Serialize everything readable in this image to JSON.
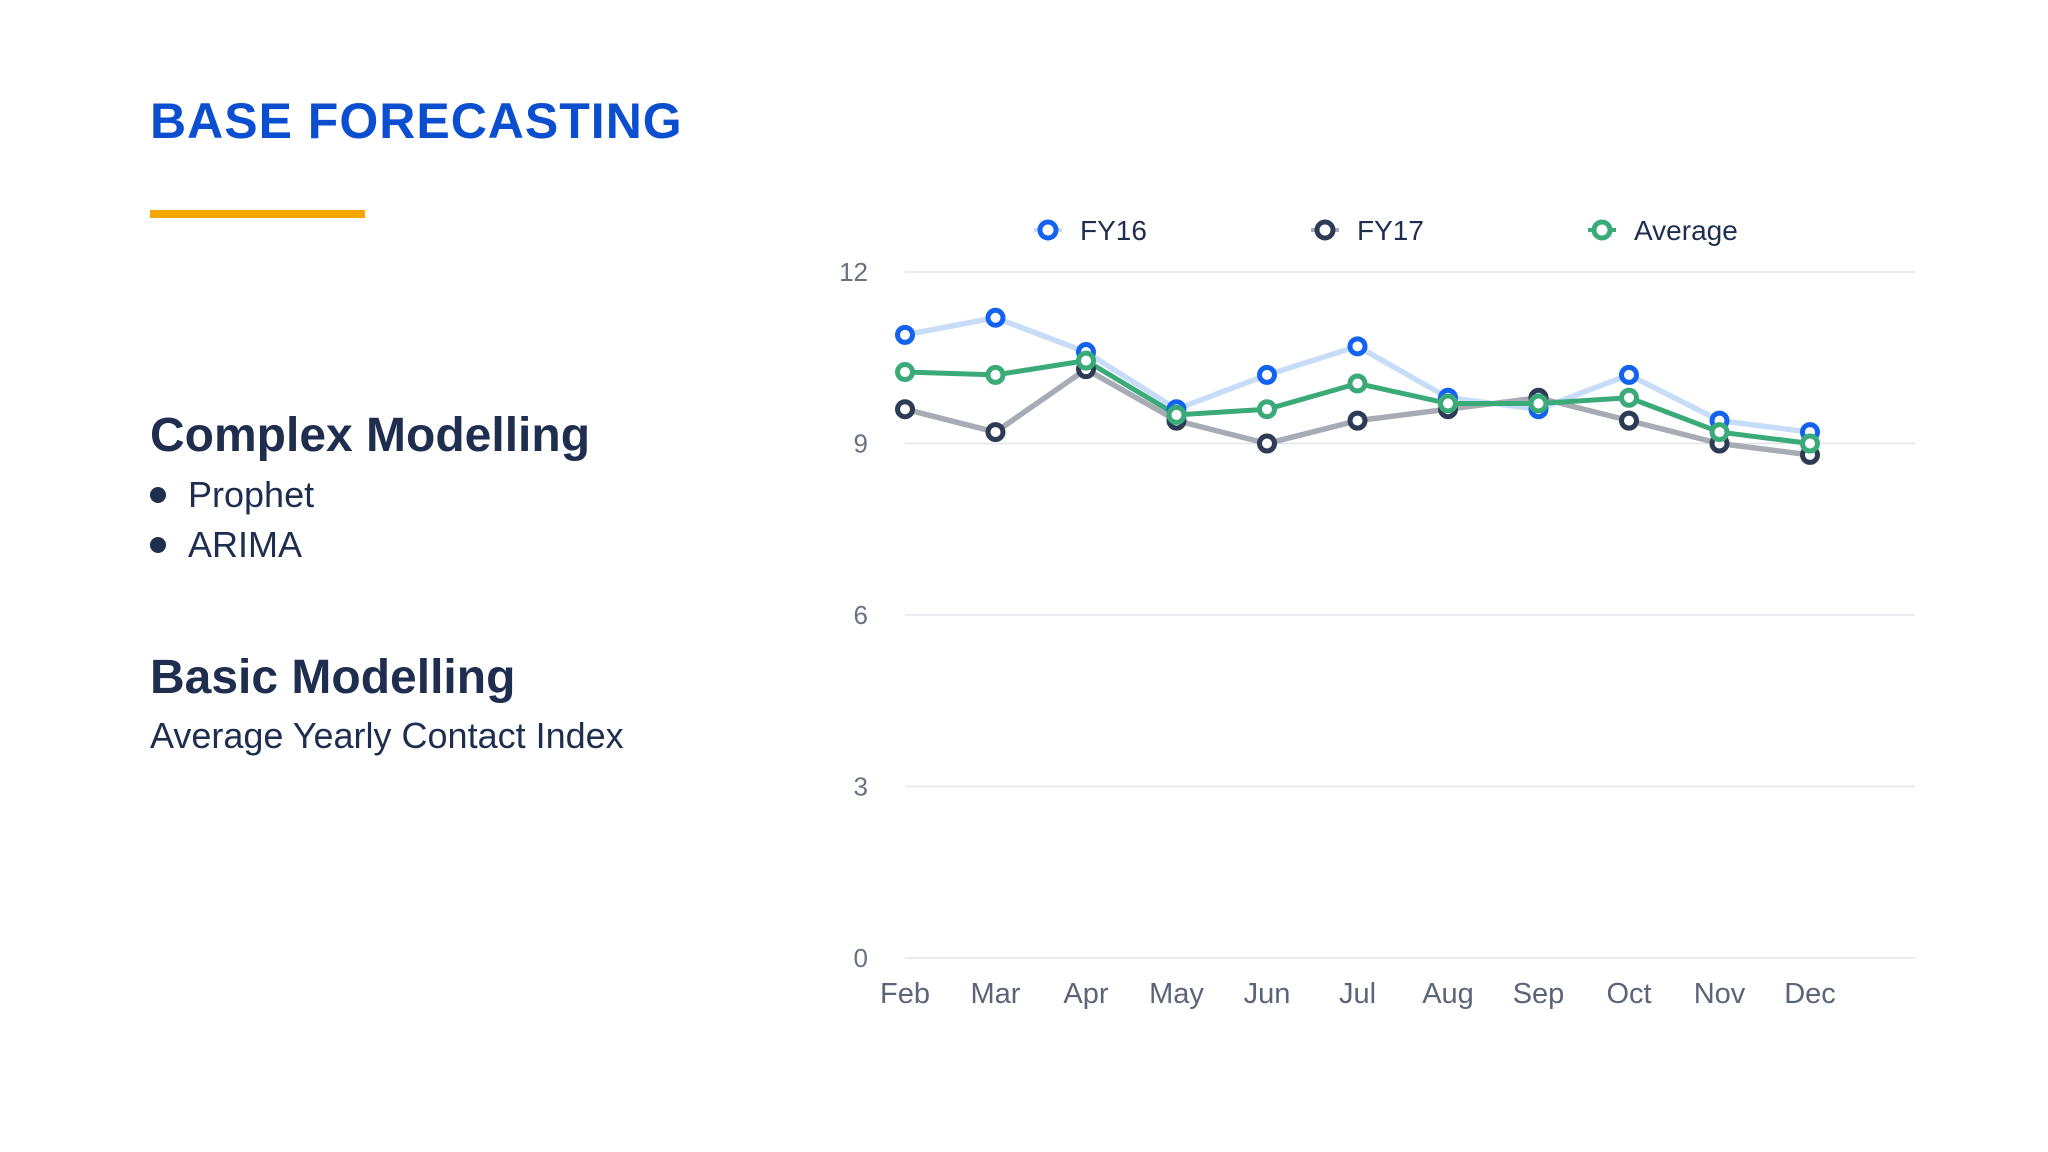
{
  "slide": {
    "title": "BASE FORECASTING",
    "accent_color": "#f5a700",
    "complex": {
      "heading": "Complex Modelling",
      "items": [
        "Prophet",
        "ARIMA"
      ]
    },
    "basic": {
      "heading": "Basic Modelling",
      "subtitle": "Average Yearly Contact Index"
    }
  },
  "chart_data": {
    "type": "line",
    "title": "",
    "xlabel": "",
    "ylabel": "",
    "categories": [
      "Feb",
      "Mar",
      "Apr",
      "May",
      "Jun",
      "Jul",
      "Aug",
      "Sep",
      "Oct",
      "Nov",
      "Dec"
    ],
    "ylim": [
      0,
      12
    ],
    "yticks": [
      0,
      3,
      6,
      9,
      12
    ],
    "grid": true,
    "legend_position": "top",
    "series": [
      {
        "name": "FY16",
        "values": [
          10.9,
          11.2,
          10.6,
          9.6,
          10.2,
          10.7,
          9.8,
          9.6,
          10.2,
          9.4,
          9.2
        ],
        "marker_color": "#1463f0",
        "line_color": "#c7dcf7"
      },
      {
        "name": "FY17",
        "values": [
          9.6,
          9.2,
          10.3,
          9.4,
          9.0,
          9.4,
          9.6,
          9.8,
          9.4,
          9.0,
          8.8
        ],
        "marker_color": "#2e3b55",
        "line_color": "#a7abb4"
      },
      {
        "name": "Average",
        "values": [
          10.25,
          10.2,
          10.45,
          9.5,
          9.6,
          10.05,
          9.7,
          9.7,
          9.8,
          9.2,
          9.0
        ],
        "marker_color": "#3aaa78",
        "line_color": "#3aaa78"
      }
    ]
  }
}
